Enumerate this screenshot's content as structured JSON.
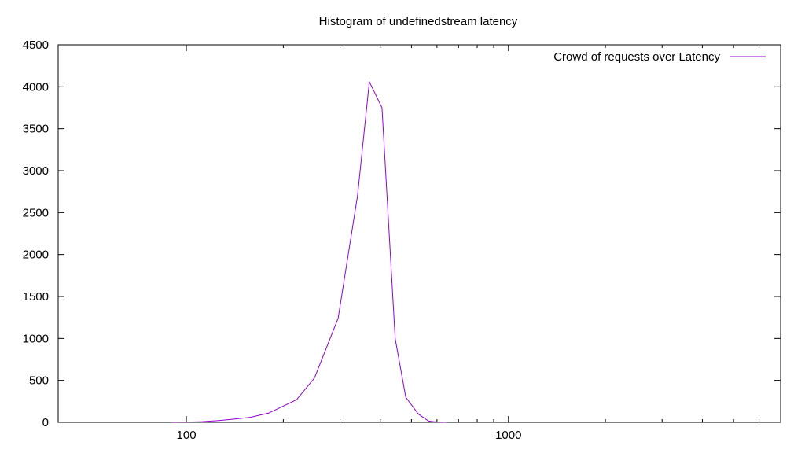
{
  "chart_data": {
    "type": "line",
    "title": "Histogram of undefinedstream latency",
    "xlabel": "",
    "ylabel": "",
    "x_scale": "log",
    "xlim": [
      40,
      7000
    ],
    "ylim": [
      0,
      4500
    ],
    "grid": false,
    "legend_position": "top-right",
    "y_ticks": [
      0,
      500,
      1000,
      1500,
      2000,
      2500,
      3000,
      3500,
      4000,
      4500
    ],
    "x_ticks": [
      100,
      1000
    ],
    "x_minor_ticks": [
      200,
      300,
      400,
      500,
      600,
      700,
      800,
      900,
      2000,
      3000,
      4000,
      5000,
      6000
    ],
    "y_tick_labels": [
      "0",
      "500",
      "1000",
      "1500",
      "2000",
      "2500",
      "3000",
      "3500",
      "4000",
      "4500"
    ],
    "x_tick_labels": [
      "100",
      "1000"
    ],
    "series": [
      {
        "name": "Crowd of requests over Latency",
        "color": "#9400d3",
        "x": [
          90,
          100,
          112,
          125,
          140,
          158,
          180,
          220,
          250,
          296,
          340,
          370,
          405,
          445,
          480,
          525,
          565,
          600,
          640
        ],
        "y": [
          2,
          3,
          8,
          20,
          38,
          60,
          110,
          270,
          530,
          1240,
          2700,
          4060,
          3750,
          1000,
          300,
          100,
          15,
          3,
          0
        ]
      }
    ]
  }
}
